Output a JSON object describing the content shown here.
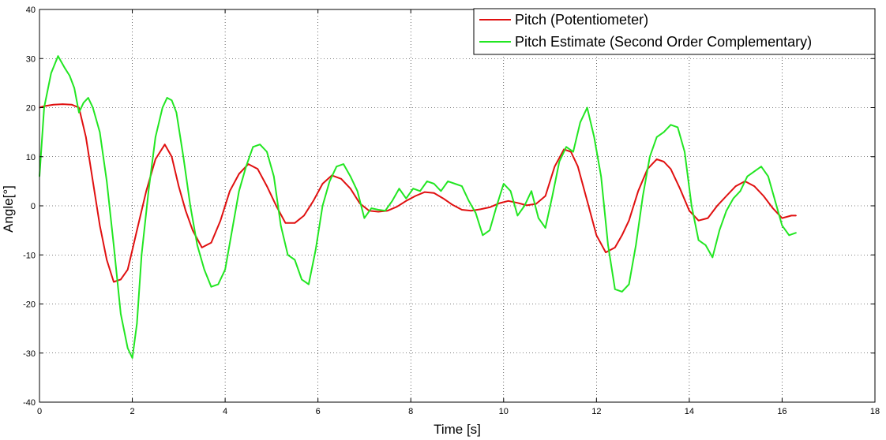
{
  "chart_data": {
    "type": "line",
    "title": "",
    "xlabel": "Time [s]",
    "ylabel": "Angle[°]",
    "xlim": [
      0,
      18
    ],
    "ylim": [
      -40,
      40
    ],
    "xticks": [
      "0",
      "2",
      "4",
      "6",
      "8",
      "10",
      "12",
      "14",
      "16",
      "18"
    ],
    "yticks": [
      "40",
      "30",
      "20",
      "10",
      "0",
      "-10",
      "-20",
      "-30",
      "-40"
    ],
    "grid": true,
    "legend_position": "top-right",
    "series": [
      {
        "name": "Pitch (Potentiometer)",
        "color": "#e01010",
        "x": [
          0,
          0.1,
          0.3,
          0.5,
          0.7,
          0.85,
          1.0,
          1.15,
          1.3,
          1.45,
          1.6,
          1.75,
          1.9,
          2.0,
          2.1,
          2.3,
          2.5,
          2.7,
          2.85,
          3.0,
          3.15,
          3.3,
          3.5,
          3.7,
          3.9,
          4.1,
          4.3,
          4.5,
          4.7,
          4.9,
          5.1,
          5.3,
          5.5,
          5.7,
          5.9,
          6.1,
          6.3,
          6.5,
          6.7,
          6.9,
          7.1,
          7.3,
          7.5,
          7.7,
          7.9,
          8.1,
          8.3,
          8.5,
          8.7,
          8.9,
          9.1,
          9.3,
          9.5,
          9.7,
          9.9,
          10.1,
          10.3,
          10.5,
          10.7,
          10.9,
          11.1,
          11.3,
          11.45,
          11.6,
          11.8,
          12.0,
          12.2,
          12.4,
          12.55,
          12.7,
          12.9,
          13.1,
          13.3,
          13.45,
          13.6,
          13.8,
          14.0,
          14.2,
          14.4,
          14.6,
          14.8,
          15.0,
          15.2,
          15.4,
          15.6,
          15.8,
          16.0,
          16.2,
          16.3
        ],
        "values": [
          20,
          20.3,
          20.6,
          20.7,
          20.6,
          20,
          14,
          5,
          -4,
          -11,
          -15.5,
          -15,
          -13,
          -9,
          -5,
          3,
          9.5,
          12.5,
          10,
          4,
          -1,
          -5,
          -8.5,
          -7.5,
          -3,
          3,
          6.5,
          8.5,
          7.5,
          4,
          0,
          -3.5,
          -3.5,
          -2,
          1,
          4.5,
          6.2,
          5.5,
          3.5,
          0.5,
          -1,
          -1.2,
          -1,
          -0.2,
          1,
          2,
          2.8,
          2.6,
          1.5,
          0.2,
          -0.8,
          -1,
          -0.7,
          -0.3,
          0.5,
          1,
          0.6,
          0.1,
          0.4,
          2,
          8,
          11.5,
          11,
          8,
          1,
          -6,
          -9.5,
          -8.5,
          -6,
          -3,
          3,
          7.5,
          9.5,
          9,
          7.5,
          3.5,
          -1,
          -3,
          -2.5,
          0,
          2,
          4,
          5,
          4,
          2,
          -0.5,
          -2.5,
          -2,
          -2
        ]
      },
      {
        "name": "Pitch Estimate (Second Order Complementary)",
        "color": "#22e622",
        "x": [
          0,
          0.1,
          0.25,
          0.4,
          0.55,
          0.65,
          0.75,
          0.85,
          0.95,
          1.05,
          1.15,
          1.3,
          1.45,
          1.6,
          1.75,
          1.9,
          2.0,
          2.1,
          2.2,
          2.35,
          2.5,
          2.65,
          2.75,
          2.85,
          2.95,
          3.1,
          3.25,
          3.4,
          3.55,
          3.7,
          3.85,
          4.0,
          4.15,
          4.3,
          4.45,
          4.6,
          4.75,
          4.9,
          5.05,
          5.2,
          5.35,
          5.5,
          5.65,
          5.8,
          5.95,
          6.1,
          6.25,
          6.4,
          6.55,
          6.7,
          6.85,
          7.0,
          7.15,
          7.3,
          7.45,
          7.6,
          7.75,
          7.9,
          8.05,
          8.2,
          8.35,
          8.5,
          8.65,
          8.8,
          8.95,
          9.1,
          9.25,
          9.4,
          9.55,
          9.7,
          9.85,
          10.0,
          10.15,
          10.3,
          10.45,
          10.6,
          10.75,
          10.9,
          11.05,
          11.2,
          11.35,
          11.5,
          11.65,
          11.8,
          11.95,
          12.1,
          12.25,
          12.4,
          12.55,
          12.7,
          12.85,
          13.0,
          13.15,
          13.3,
          13.45,
          13.6,
          13.75,
          13.9,
          14.05,
          14.2,
          14.35,
          14.5,
          14.65,
          14.8,
          14.95,
          15.1,
          15.25,
          15.4,
          15.55,
          15.7,
          15.85,
          16.0,
          16.15,
          16.3
        ],
        "values": [
          6,
          20,
          27,
          30.5,
          28,
          26.5,
          24,
          19,
          21,
          22,
          20,
          15,
          5,
          -8,
          -22,
          -29,
          -31,
          -24,
          -10,
          3,
          14,
          20,
          22,
          21.5,
          19,
          10,
          0,
          -8,
          -13,
          -16.5,
          -16,
          -13,
          -5,
          3,
          8,
          12,
          12.5,
          11,
          6,
          -4,
          -10,
          -11,
          -15,
          -16,
          -9,
          0,
          5,
          8,
          8.5,
          6,
          3,
          -2.5,
          -0.5,
          -0.8,
          -1,
          1,
          3.5,
          1.5,
          3.5,
          3,
          5,
          4.5,
          3,
          5,
          4.5,
          4,
          1,
          -1.5,
          -6,
          -5,
          0,
          4.5,
          3,
          -2,
          0,
          3,
          -2.5,
          -4.5,
          2,
          9,
          12,
          11,
          17,
          20,
          14,
          6,
          -8,
          -17,
          -17.5,
          -16,
          -8,
          2,
          10,
          14,
          15,
          16.5,
          16,
          11,
          0,
          -7,
          -8,
          -10.5,
          -5,
          -1,
          1.5,
          3,
          6,
          7,
          8,
          6,
          1,
          -4,
          -6,
          -5.5
        ]
      }
    ]
  }
}
